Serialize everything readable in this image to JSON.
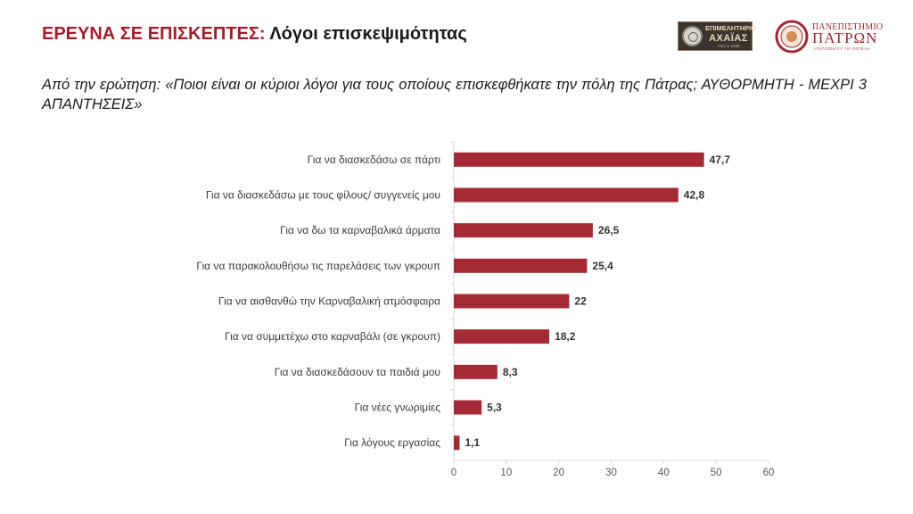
{
  "header": {
    "title_prefix": "ΕΡΕΥΝΑ ΣΕ ΕΠΙΣΚΕΠΤΕΣ:",
    "title_main": "Λόγοι επισκεψιμότητας",
    "subtitle": "Από την ερώτηση: «Ποιοι είναι οι κύριοι λόγοι για τους οποίους επισκεφθήκατε την πόλη της Πάτρας; ΑΥΘΟΡΜΗΤΗ  - ΜΕΧΡΙ 3 ΑΠΑΝΤΗΣΕΙΣ»"
  },
  "logos": {
    "chamber": {
      "line1": "ΕΠΙΜΕΛΗΤΗΡΙΟ",
      "line2": "ΑΧΑΪΑΣ",
      "line3": "Από το 1836"
    },
    "university": {
      "line1": "ΠΑΝΕΠΙΣΤΗΜΙΟ",
      "line2": "ΠΑΤΡΩΝ",
      "line3": "UNIVERSITY OF PATRAS"
    }
  },
  "colors": {
    "accent": "#a41d2c",
    "bar": "#a52a35",
    "axis": "#d9d9d9"
  },
  "chart_data": {
    "type": "bar",
    "orientation": "horizontal",
    "title": "",
    "xlabel": "",
    "ylabel": "",
    "xlim": [
      0,
      60
    ],
    "xticks": [
      0,
      10,
      20,
      30,
      40,
      50,
      60
    ],
    "grid": false,
    "categories": [
      "Για να διασκεδάσω σε πάρτι",
      "Για να διασκεδάσω με τους φίλους/ συγγενείς μου",
      "Για να δω τα καρναβαλικά άρματα",
      "Για να παρακολουθήσω τις παρελάσεις των γκρουπ",
      "Για να αισθανθώ την Καρναβαλική ατμόσφαιρα",
      "Για να συμμετέχω στο καρναβάλι (σε γκρουπ)",
      "Για να διασκεδάσουν τα παιδιά μου",
      "Για νέες γνωριμίες",
      "Για λόγους εργασίας"
    ],
    "values": [
      47.7,
      42.8,
      26.5,
      25.4,
      22,
      18.2,
      8.3,
      5.3,
      1.1
    ],
    "value_labels": [
      "47,7",
      "42,8",
      "26,5",
      "25,4",
      "22",
      "18,2",
      "8,3",
      "5,3",
      "1,1"
    ]
  }
}
